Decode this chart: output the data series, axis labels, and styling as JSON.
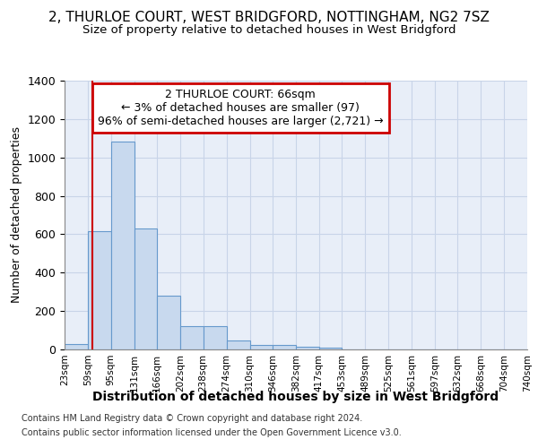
{
  "title": "2, THURLOE COURT, WEST BRIDGFORD, NOTTINGHAM, NG2 7SZ",
  "subtitle": "Size of property relative to detached houses in West Bridgford",
  "xlabel": "Distribution of detached houses by size in West Bridgford",
  "ylabel": "Number of detached properties",
  "footnote1": "Contains HM Land Registry data © Crown copyright and database right 2024.",
  "footnote2": "Contains public sector information licensed under the Open Government Licence v3.0.",
  "bin_edges": [
    23,
    59,
    95,
    131,
    166,
    202,
    238,
    274,
    310,
    346,
    382,
    417,
    453,
    489,
    525,
    561,
    597,
    632,
    668,
    704,
    740
  ],
  "bar_heights": [
    30,
    615,
    1085,
    630,
    280,
    120,
    120,
    45,
    25,
    25,
    15,
    10,
    0,
    0,
    0,
    0,
    0,
    0,
    0,
    0
  ],
  "bar_facecolor": "#c8d9ee",
  "bar_edgecolor": "#6699cc",
  "grid_color": "#c8d4e8",
  "bg_color": "#e8eef8",
  "vline_x": 66,
  "vline_color": "#cc0000",
  "ylim": [
    0,
    1400
  ],
  "annotation_text": "2 THURLOE COURT: 66sqm\n← 3% of detached houses are smaller (97)\n96% of semi-detached houses are larger (2,721) →",
  "annotation_box_color": "#cc0000",
  "title_fontsize": 11,
  "subtitle_fontsize": 9.5,
  "xlabel_fontsize": 10,
  "ylabel_fontsize": 9
}
